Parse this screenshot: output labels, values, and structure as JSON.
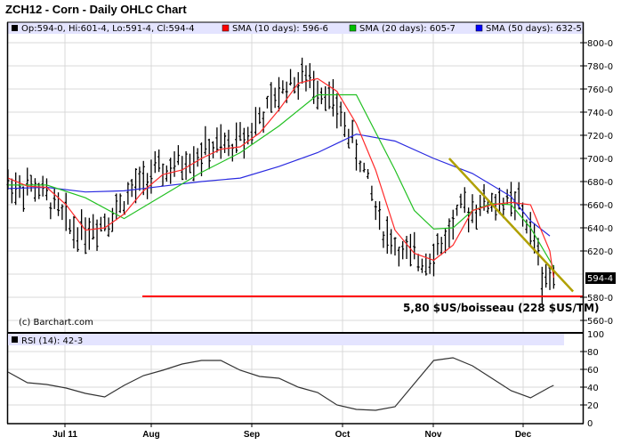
{
  "title": "ZCH12 - Corn - Daily OHLC Chart",
  "legend": {
    "ohlc": "Op:594-0, Hi:601-4, Lo:591-4, Cl:594-4",
    "sma10": "SMA (10 days): 596-6",
    "sma20": "SMA (20 days): 605-7",
    "sma50": "SMA (50 days): 632-5",
    "rsi": "RSI (14): 42-3"
  },
  "copyright": "(c) Barchart.com",
  "annotation": "5,80 $US/boisseau (228 $US/TM)",
  "last_price_tag": "594-4",
  "colors": {
    "sma10": "#ff2020",
    "sma20": "#20c020",
    "sma50": "#2020e0",
    "trendline": "#b0a000",
    "support": "#ff0000",
    "legend_band": "#e4e4ff",
    "grid": "#d8d8d8"
  },
  "chart_data": [
    {
      "type": "line",
      "title": "ZCH12 - Corn - Daily OHLC Chart",
      "subtype": "ohlc",
      "xlabel": "",
      "ylabel": "",
      "x_ticks": [
        "Jul 11",
        "Aug",
        "Sep",
        "Oct",
        "Nov",
        "Dec"
      ],
      "y_ticks": [
        "800-0",
        "780-0",
        "760-0",
        "740-0",
        "720-0",
        "700-0",
        "680-0",
        "660-0",
        "640-0",
        "620-0",
        "580-0",
        "560-0"
      ],
      "ylim": [
        555,
        815
      ],
      "grid": true,
      "legend_position": "top",
      "series": [
        {
          "name": "SMA (10 days)",
          "last": "596-6",
          "x": [
            0,
            5,
            10,
            15,
            20,
            25,
            30,
            35,
            40,
            45,
            50,
            55,
            60,
            65,
            70,
            75,
            80,
            85,
            90,
            95,
            100,
            105,
            110,
            115,
            120,
            125,
            130,
            135,
            140,
            141
          ],
          "values": [
            683,
            676,
            675,
            660,
            638,
            640,
            652,
            672,
            686,
            690,
            700,
            708,
            710,
            722,
            742,
            765,
            769,
            758,
            730,
            690,
            638,
            618,
            612,
            625,
            655,
            660,
            662,
            660,
            620,
            597
          ]
        },
        {
          "name": "SMA (20 days)",
          "last": "605-7",
          "x": [
            0,
            10,
            20,
            30,
            40,
            50,
            60,
            70,
            80,
            90,
            100,
            105,
            110,
            115,
            120,
            125,
            130,
            135,
            141
          ],
          "values": [
            677,
            677,
            666,
            648,
            668,
            688,
            705,
            728,
            755,
            755,
            690,
            655,
            639,
            640,
            655,
            661,
            660,
            640,
            606
          ]
        },
        {
          "name": "SMA (50 days)",
          "last": "632-5",
          "x": [
            0,
            10,
            20,
            30,
            40,
            50,
            60,
            70,
            80,
            90,
            100,
            110,
            120,
            130,
            135,
            140
          ],
          "values": [
            674,
            675,
            671,
            672,
            676,
            680,
            683,
            693,
            705,
            721,
            715,
            700,
            687,
            667,
            646,
            633
          ]
        },
        {
          "name": "Trendline",
          "x": [
            114,
            146
          ],
          "values": [
            700,
            585
          ]
        },
        {
          "name": "Support 580",
          "x": [
            36,
            146
          ],
          "values": [
            580,
            580
          ]
        }
      ],
      "last_ohlc": {
        "open": "594-0",
        "high": "601-4",
        "low": "591-4",
        "close": "594-4"
      }
    },
    {
      "type": "line",
      "title": "RSI (14)",
      "last": "42-3",
      "y_ticks": [
        0,
        20,
        40,
        60,
        80,
        100
      ],
      "ylim": [
        0,
        100
      ],
      "x": [
        0,
        5,
        10,
        15,
        20,
        25,
        30,
        35,
        40,
        45,
        50,
        55,
        60,
        65,
        70,
        75,
        80,
        85,
        90,
        95,
        100,
        105,
        110,
        115,
        120,
        125,
        130,
        135,
        140,
        141
      ],
      "values": [
        57,
        45,
        43,
        39,
        33,
        29,
        42,
        53,
        59,
        66,
        70,
        70,
        59,
        52,
        50,
        40,
        34,
        20,
        15,
        14,
        18,
        44,
        70,
        73,
        64,
        50,
        36,
        28,
        40,
        42
      ]
    }
  ]
}
